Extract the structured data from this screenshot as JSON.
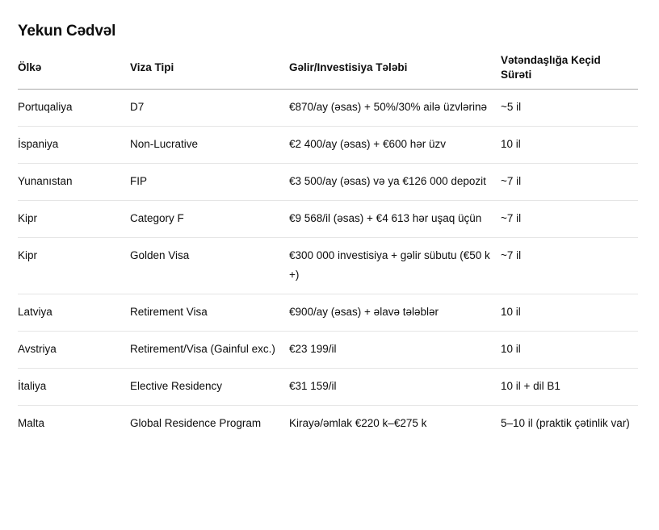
{
  "title": "Yekun Cədvəl",
  "columns": [
    "Ölkə",
    "Viza Tipi",
    "Gəlir/Investisiya Tələbi",
    "Vətəndaşlığa Keçid Sürəti"
  ],
  "rows": [
    [
      "Portuqaliya",
      "D7",
      "€870/ay (əsas) + 50%/30% ailə üzvlərinə",
      "~5 il"
    ],
    [
      "İspaniya",
      "Non-Lucrative",
      "€2 400/ay (əsas) + €600 hər üzv",
      "10 il"
    ],
    [
      "Yunanıstan",
      "FIP",
      "€3 500/ay (əsas) və ya €126 000 depozit",
      "~7 il"
    ],
    [
      "Kipr",
      "Category F",
      "€9 568/il (əsas) + €4 613 hər uşaq üçün",
      "~7 il"
    ],
    [
      "Kipr",
      "Golden Visa",
      "€300 000 investisiya + gəlir sübutu (€50 k +)",
      "~7 il"
    ],
    [
      "Latviya",
      "Retirement Visa",
      "€900/ay (əsas) + əlavə tələblər",
      "10 il"
    ],
    [
      "Avstriya",
      "Retirement/Visa (Gainful exc.)",
      "€23 199/il",
      "10 il"
    ],
    [
      "İtaliya",
      "Elective Residency",
      "€31 159/il",
      "10 il + dil B1"
    ],
    [
      "Malta",
      "Global Residence Program",
      "Kirayə/əmlak €220 k–€275 k",
      "5–10 il (praktik çətinlik var)"
    ]
  ]
}
